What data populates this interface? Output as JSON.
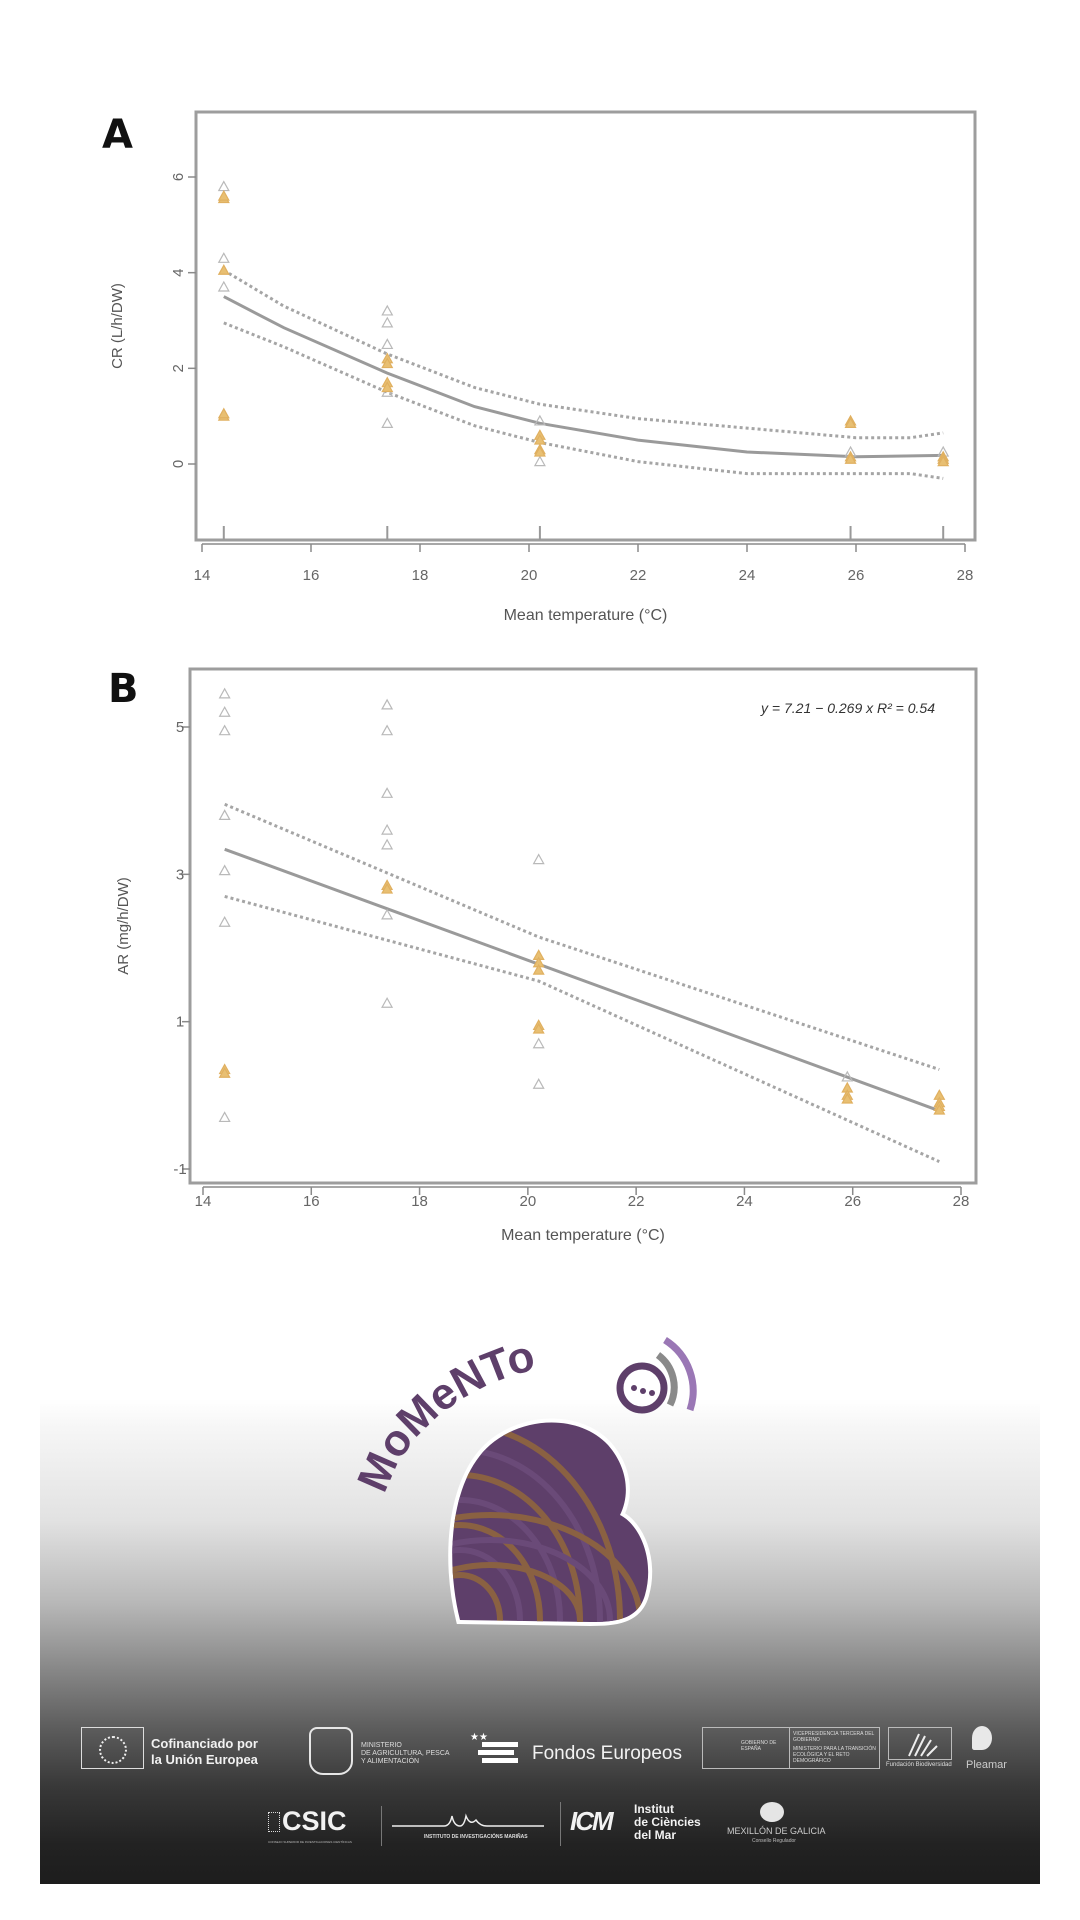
{
  "panels": {
    "a_label": "A",
    "b_label": "B"
  },
  "chart_data": [
    {
      "type": "scatter",
      "id": "A",
      "title": "",
      "xlabel": "Mean temperature (°C)",
      "ylabel": "CR (L/h/DW)",
      "xlim": [
        13.9,
        28.2
      ],
      "ylim": [
        -1.6,
        7.35
      ],
      "xticks": [
        "14",
        "16",
        "18",
        "20",
        "22",
        "24",
        "26",
        "28"
      ],
      "yticks": [
        "0",
        "2",
        "4",
        "6"
      ],
      "grid": false,
      "points_gray": [
        [
          14.4,
          5.8
        ],
        [
          14.4,
          4.3
        ],
        [
          14.4,
          3.7
        ],
        [
          17.4,
          3.2
        ],
        [
          17.4,
          2.95
        ],
        [
          17.4,
          2.5
        ],
        [
          17.4,
          1.5
        ],
        [
          17.4,
          0.85
        ],
        [
          20.2,
          0.9
        ],
        [
          20.2,
          0.05
        ],
        [
          25.9,
          0.25
        ],
        [
          27.6,
          0.25
        ]
      ],
      "points_orange": [
        [
          14.4,
          5.55
        ],
        [
          14.4,
          5.6
        ],
        [
          14.4,
          4.05
        ],
        [
          14.4,
          1.0
        ],
        [
          14.4,
          1.05
        ],
        [
          17.4,
          2.2
        ],
        [
          17.4,
          2.1
        ],
        [
          17.4,
          1.7
        ],
        [
          17.4,
          1.6
        ],
        [
          20.2,
          0.6
        ],
        [
          20.2,
          0.5
        ],
        [
          20.2,
          0.3
        ],
        [
          20.2,
          0.25
        ],
        [
          25.9,
          0.9
        ],
        [
          25.9,
          0.85
        ],
        [
          25.9,
          0.15
        ],
        [
          25.9,
          0.1
        ],
        [
          27.6,
          0.15
        ],
        [
          27.6,
          0.1
        ],
        [
          27.6,
          0.05
        ]
      ],
      "fit": [
        [
          14.4,
          3.5
        ],
        [
          15.5,
          2.85
        ],
        [
          17.4,
          1.9
        ],
        [
          19,
          1.2
        ],
        [
          20.2,
          0.85
        ],
        [
          22,
          0.5
        ],
        [
          24,
          0.25
        ],
        [
          26,
          0.15
        ],
        [
          27.6,
          0.18
        ]
      ],
      "ci_upper": [
        [
          14.4,
          4.05
        ],
        [
          15.5,
          3.3
        ],
        [
          17.4,
          2.3
        ],
        [
          19,
          1.6
        ],
        [
          20.2,
          1.25
        ],
        [
          22,
          0.95
        ],
        [
          24,
          0.75
        ],
        [
          26,
          0.55
        ],
        [
          27,
          0.55
        ],
        [
          27.6,
          0.65
        ]
      ],
      "ci_lower": [
        [
          14.4,
          2.95
        ],
        [
          15.5,
          2.45
        ],
        [
          17.4,
          1.5
        ],
        [
          19,
          0.8
        ],
        [
          20.2,
          0.45
        ],
        [
          22,
          0.05
        ],
        [
          24,
          -0.2
        ],
        [
          26,
          -0.2
        ],
        [
          27,
          -0.2
        ],
        [
          27.6,
          -0.3
        ]
      ],
      "rug_x": [
        14.4,
        17.4,
        20.2,
        25.9,
        27.6
      ]
    },
    {
      "type": "scatter",
      "id": "B",
      "title": "",
      "xlabel": "Mean temperature (°C)",
      "ylabel": "AR (mg/h/DW)",
      "xlim": [
        13.8,
        28.3
      ],
      "ylim": [
        -1.2,
        5.8
      ],
      "xticks": [
        "14",
        "16",
        "18",
        "20",
        "22",
        "24",
        "26",
        "28"
      ],
      "yticks": [
        "-1",
        "1",
        "3",
        "5"
      ],
      "grid": false,
      "annotation": "y = 7.21 − 0.269 x   R² = 0.54",
      "regression": {
        "intercept": 7.21,
        "slope": -0.269,
        "r2": 0.54
      },
      "points_gray": [
        [
          14.4,
          5.45
        ],
        [
          14.4,
          5.2
        ],
        [
          14.4,
          4.95
        ],
        [
          14.4,
          3.8
        ],
        [
          14.4,
          3.05
        ],
        [
          14.4,
          2.35
        ],
        [
          14.4,
          -0.3
        ],
        [
          17.4,
          5.3
        ],
        [
          17.4,
          4.95
        ],
        [
          17.4,
          4.1
        ],
        [
          17.4,
          3.6
        ],
        [
          17.4,
          3.4
        ],
        [
          17.4,
          2.45
        ],
        [
          17.4,
          1.25
        ],
        [
          20.2,
          3.2
        ],
        [
          20.2,
          0.7
        ],
        [
          20.2,
          0.15
        ],
        [
          25.9,
          0.25
        ]
      ],
      "points_orange": [
        [
          14.4,
          0.35
        ],
        [
          14.4,
          0.3
        ],
        [
          17.4,
          2.85
        ],
        [
          17.4,
          2.8
        ],
        [
          20.2,
          1.9
        ],
        [
          20.2,
          1.8
        ],
        [
          20.2,
          1.7
        ],
        [
          20.2,
          0.95
        ],
        [
          20.2,
          0.9
        ],
        [
          25.9,
          0.1
        ],
        [
          25.9,
          0.0
        ],
        [
          25.9,
          -0.05
        ],
        [
          27.6,
          0.0
        ],
        [
          27.6,
          -0.1
        ],
        [
          27.6,
          -0.15
        ],
        [
          27.6,
          -0.2
        ]
      ],
      "fit": [
        [
          14.4,
          3.34
        ],
        [
          27.6,
          -0.21
        ]
      ],
      "ci_upper": [
        [
          14.4,
          3.95
        ],
        [
          20.2,
          2.15
        ],
        [
          27.6,
          0.35
        ]
      ],
      "ci_lower": [
        [
          14.4,
          2.7
        ],
        [
          20.2,
          1.55
        ],
        [
          27.6,
          -0.9
        ]
      ]
    }
  ],
  "colors": {
    "gray_point": "#b9b9b9",
    "orange_point": "#e8bf72",
    "line": "#9a9a9a",
    "logo_purple": "#5e3f6a",
    "logo_brown": "#8a6142"
  },
  "logo": {
    "text": "MoMeNTo"
  },
  "sponsors": {
    "eu": {
      "line1": "Cofinanciado por",
      "line2": "la Unión Europea"
    },
    "mapa": {
      "line1": "MINISTERIO",
      "line2": "DE AGRICULTURA, PESCA",
      "line3": "Y ALIMENTACIÓN"
    },
    "fondos": "Fondos Europeos",
    "gobierno": {
      "left": "GOBIERNO DE ESPAÑA",
      "right1": "VICEPRESIDENCIA TERCERA DEL GOBIERNO",
      "right2": "MINISTERIO PARA LA TRANSICIÓN ECOLÓGICA Y EL RETO DEMOGRÁFICO"
    },
    "biodiversidad": "Fundación Biodiversidad",
    "pleamar": "Pleamar",
    "csic": {
      "name": "CSIC",
      "sub": "CONSEJO SUPERIOR DE INVESTIGACIONES CIENTÍFICAS"
    },
    "iim": "INSTITUTO DE INVESTIGACIÓNS MARIÑAS",
    "icm": {
      "mark": "ICM",
      "line1": "Institut",
      "line2": "de Ciències",
      "line3": "del Mar"
    },
    "mexillon": {
      "name": "MEXILLÓN DE GALICIA",
      "sub": "Consello Regulador"
    }
  }
}
